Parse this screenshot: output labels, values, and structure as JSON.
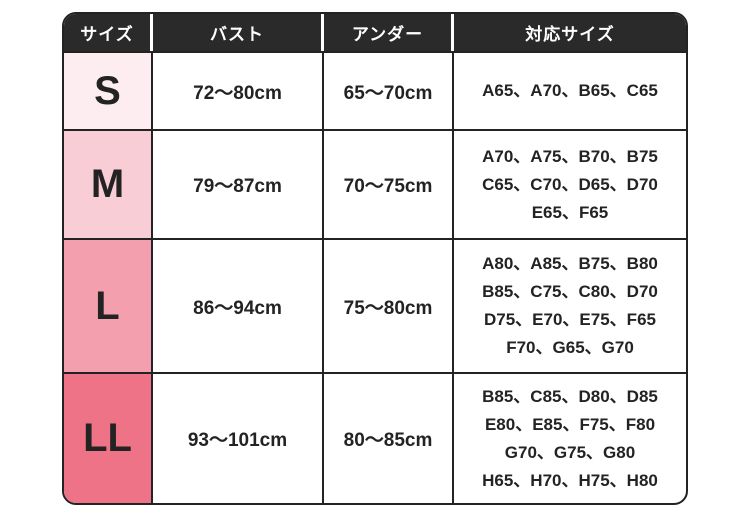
{
  "size_chart": {
    "border_color": "#232323",
    "text_color": "#232323",
    "header": {
      "background": "#2a2a2a",
      "text_color": "#ffffff",
      "size_label": "サイズ",
      "bust_label": "バスト",
      "under_label": "アンダー",
      "fit_label": "対応サイズ"
    },
    "rows": [
      {
        "size": "S",
        "size_bg": "#fdedf0",
        "bust": "72〜80cm",
        "under": "65〜70cm",
        "fit_sizes": "A65、A70、B65、C65"
      },
      {
        "size": "M",
        "size_bg": "#f9cdd5",
        "bust": "79〜87cm",
        "under": "70〜75cm",
        "fit_sizes": "A70、A75、B70、B75\nC65、C70、D65、D70\nE65、F65"
      },
      {
        "size": "L",
        "size_bg": "#f49fad",
        "bust": "86〜94cm",
        "under": "75〜80cm",
        "fit_sizes": "A80、A85、B75、B80\nB85、C75、C80、D70\nD75、E70、E75、F65\nF70、G65、G70"
      },
      {
        "size": "LL",
        "size_bg": "#ee7386",
        "bust": "93〜101cm",
        "under": "80〜85cm",
        "fit_sizes": "B85、C85、D80、D85\nE80、E85、F75、F80\nG70、G75、G80\nH65、H70、H75、H80"
      }
    ]
  },
  "chart_data": {
    "type": "table",
    "title": "",
    "columns": [
      "サイズ",
      "バスト",
      "アンダー",
      "対応サイズ"
    ],
    "rows": [
      [
        "S",
        "72〜80cm",
        "65〜70cm",
        "A65、A70、B65、C65"
      ],
      [
        "M",
        "79〜87cm",
        "70〜75cm",
        "A70、A75、B70、B75、C65、C70、D65、D70、E65、F65"
      ],
      [
        "L",
        "86〜94cm",
        "75〜80cm",
        "A80、A85、B75、B80、B85、C75、C80、D70、D75、E70、E75、F65、F70、G65、G70"
      ],
      [
        "LL",
        "93〜101cm",
        "80〜85cm",
        "B85、C85、D80、D85、E80、E85、F75、F80、G70、G75、G80、H65、H70、H75、H80"
      ]
    ],
    "layout": {
      "size_cell_colors": [
        "#fdedf0",
        "#f9cdd5",
        "#f49fad",
        "#ee7386"
      ],
      "header_background": "#2a2a2a",
      "grid": "on"
    }
  }
}
